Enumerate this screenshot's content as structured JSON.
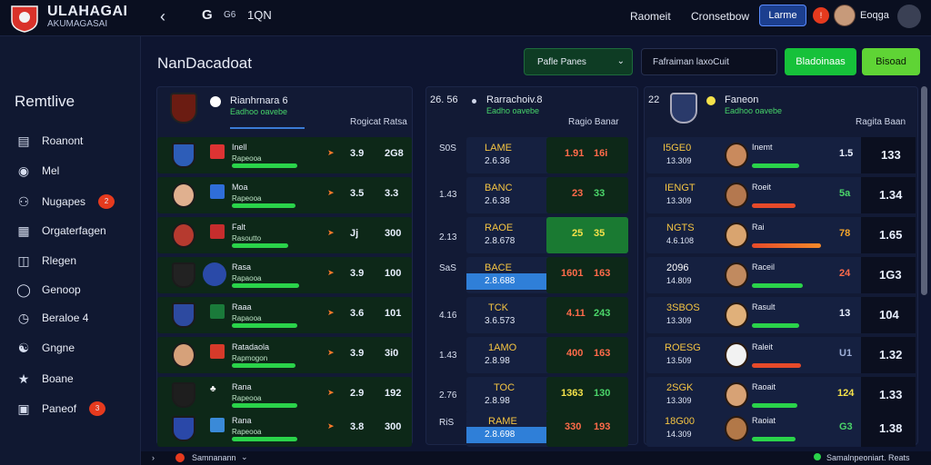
{
  "topbar": {
    "brand_title": "ULAHAGAI",
    "brand_sub": "AKUMAGASAI",
    "back_icon": "chevron-left-icon",
    "g_text": "G",
    "small_text": "G6",
    "num_text": "1QN",
    "link1": "Raomeit",
    "link2": "Cronsetbow",
    "button": "Larme",
    "notif": "!",
    "user": "Eoqga"
  },
  "sidebar": {
    "title": "Remtlive",
    "items": [
      {
        "label": "Roanont",
        "icon": "document-icon"
      },
      {
        "label": "Mel",
        "icon": "target-icon"
      },
      {
        "label": "Nugapes",
        "icon": "users-icon",
        "badge": "2"
      },
      {
        "label": "Orgaterfagen",
        "icon": "grid-icon"
      },
      {
        "label": "Rlegen",
        "icon": "table-icon"
      },
      {
        "label": "Genoop",
        "icon": "globe-icon"
      },
      {
        "label": "Beraloe 4",
        "icon": "clock-icon"
      },
      {
        "label": "Gngne",
        "icon": "person-icon"
      },
      {
        "label": "Boane",
        "icon": "share-icon"
      },
      {
        "label": "Paneof",
        "icon": "monitor-icon",
        "badge": "3"
      }
    ]
  },
  "main": {
    "title": "NanDacadoat",
    "filter": "Pafle Panes",
    "search_placeholder": "Fafraiman laxoCuit",
    "btn_primary": "Bladoinaas",
    "btn_secondary": "Bisoad"
  },
  "panels": [
    {
      "name": "Rianhrnara 6",
      "sub": "Eadhoo oavebe",
      "right": "Rogicat Ratsa",
      "rows": [
        {
          "name": "Inell",
          "sub": "Rapeooa",
          "v1": "3.9",
          "v2": "2G8"
        },
        {
          "name": "Moa",
          "sub": "Rapeooa",
          "v1": "3.5",
          "v2": "3.3"
        },
        {
          "name": "Falt",
          "sub": "Rasoutto",
          "v1": "Jj",
          "v2": "300"
        },
        {
          "name": "Rasa",
          "sub": "Rapaooa",
          "v1": "3.9",
          "v2": "100"
        },
        {
          "name": "Raaa",
          "sub": "Rapaooa",
          "v1": "3.6",
          "v2": "101"
        },
        {
          "name": "Ratadaola",
          "sub": "Rapmogon",
          "v1": "3.9",
          "v2": "3i0"
        },
        {
          "name": "Rana",
          "sub": "Rapeooa",
          "v1": "2.9",
          "v2": "192"
        },
        {
          "name": "Rana",
          "sub": "Rapeooa",
          "v1": "3.8",
          "v2": "300"
        }
      ]
    },
    {
      "name": "Rarrachoiv.8",
      "sub": "Eadho oavebe",
      "right": "Ragio Banar",
      "head_num": "26. 56",
      "rows": [
        {
          "left": "S0S",
          "name": "LAME",
          "sub": "2.6.36",
          "v1": "1.91",
          "v2": "16i"
        },
        {
          "left": "1.43",
          "name": "BANC",
          "sub": "2.6.38",
          "v1": "23",
          "v2": "33"
        },
        {
          "left": "2.13",
          "name": "RAOE",
          "sub": "2.8.678",
          "v1": "25",
          "v2": "35"
        },
        {
          "left": "SaS",
          "name": "BACE",
          "sub": "2.8.688",
          "v1": "1601",
          "v2": "163"
        },
        {
          "left": "4.16",
          "name": "TCK",
          "sub": "3.6.573",
          "v1": "4.11",
          "v2": "243"
        },
        {
          "left": "1.43",
          "name": "1AMO",
          "sub": "2.8.98",
          "v1": "400",
          "v2": "163"
        },
        {
          "left": "2.76",
          "name": "TOC",
          "sub": "2.8.98",
          "v1": "1363",
          "v2": "130"
        },
        {
          "left": "RiS",
          "name": "RAME",
          "sub": "2.8.698",
          "v1": "330",
          "v2": "193"
        }
      ]
    },
    {
      "name": "Faneon",
      "sub": "Eadhoo oavebe",
      "right": "Ragita Baan",
      "head_num": "22",
      "rows": [
        {
          "name": "I5GE0",
          "sub": "13.309",
          "lbl": "Inemt",
          "v1": "1.5",
          "v2": "133"
        },
        {
          "name": "IENGT",
          "sub": "13.309",
          "lbl": "Roeit",
          "v1": "5a",
          "v2": "1.34"
        },
        {
          "name": "NGTS",
          "sub": "4.6.108",
          "lbl": "Rai",
          "v1": "78",
          "v2": "1.65"
        },
        {
          "name": "2096",
          "sub": "14.809",
          "lbl": "Raceil",
          "v1": "24",
          "v2": "1G3"
        },
        {
          "name": "3SBOS",
          "sub": "13.309",
          "lbl": "Rasult",
          "v1": "13",
          "v2": "104"
        },
        {
          "name": "ROESG",
          "sub": "13.509",
          "lbl": "Raleit",
          "v1": "U1",
          "v2": "1.32"
        },
        {
          "name": "2SGK",
          "sub": "13.309",
          "lbl": "Raoait",
          "v1": "124",
          "v2": "1.33"
        },
        {
          "name": "18G00",
          "sub": "14.309",
          "lbl": "Raoiat",
          "v1": "G3",
          "v2": "1.38"
        }
      ]
    }
  ],
  "footer": {
    "left": "Samnanann",
    "right": "Samalnpeoniart. Reats"
  }
}
